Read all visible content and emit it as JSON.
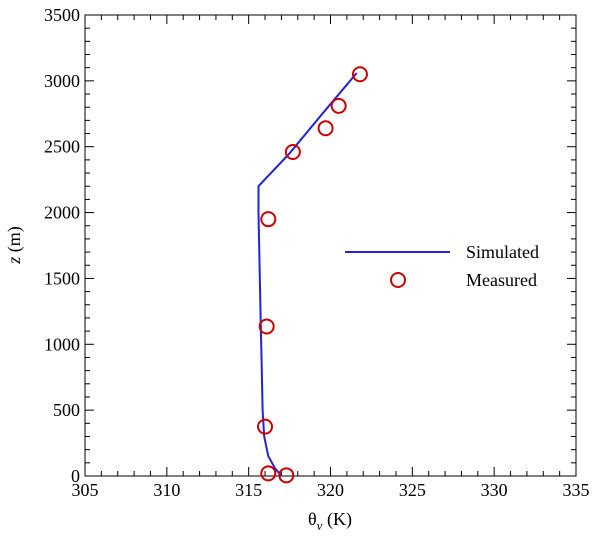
{
  "chart_data": {
    "type": "scatter",
    "xlabel_main": "θ",
    "xlabel_sub": "v",
    "xlabel_unit": " (K)",
    "ylabel_var": "z",
    "ylabel_unit": " (m)",
    "xlim": [
      305,
      335
    ],
    "ylim": [
      0,
      3500
    ],
    "xticks": [
      305,
      310,
      315,
      320,
      325,
      330,
      335
    ],
    "yticks": [
      0,
      500,
      1000,
      1500,
      2000,
      2500,
      3000,
      3500
    ],
    "grid": false,
    "legend_position": "right",
    "series": [
      {
        "name": "Simulated",
        "kind": "line",
        "color": "#2222dd",
        "x": [
          317.0,
          316.6,
          316.2,
          315.95,
          315.85,
          315.8,
          315.75,
          315.7,
          315.65,
          315.6,
          315.6,
          317.5,
          319.5,
          321.6
        ],
        "y": [
          0,
          60,
          150,
          300,
          500,
          800,
          1100,
          1400,
          1700,
          2000,
          2200,
          2450,
          2750,
          3060
        ]
      },
      {
        "name": "Measured",
        "kind": "scatter",
        "color": "#cc0000",
        "x": [
          316.2,
          317.3,
          316.0,
          316.1,
          316.2,
          317.7,
          319.7,
          320.5,
          321.8
        ],
        "y": [
          20,
          5,
          375,
          1135,
          1950,
          2460,
          2640,
          2810,
          3050
        ]
      }
    ]
  }
}
